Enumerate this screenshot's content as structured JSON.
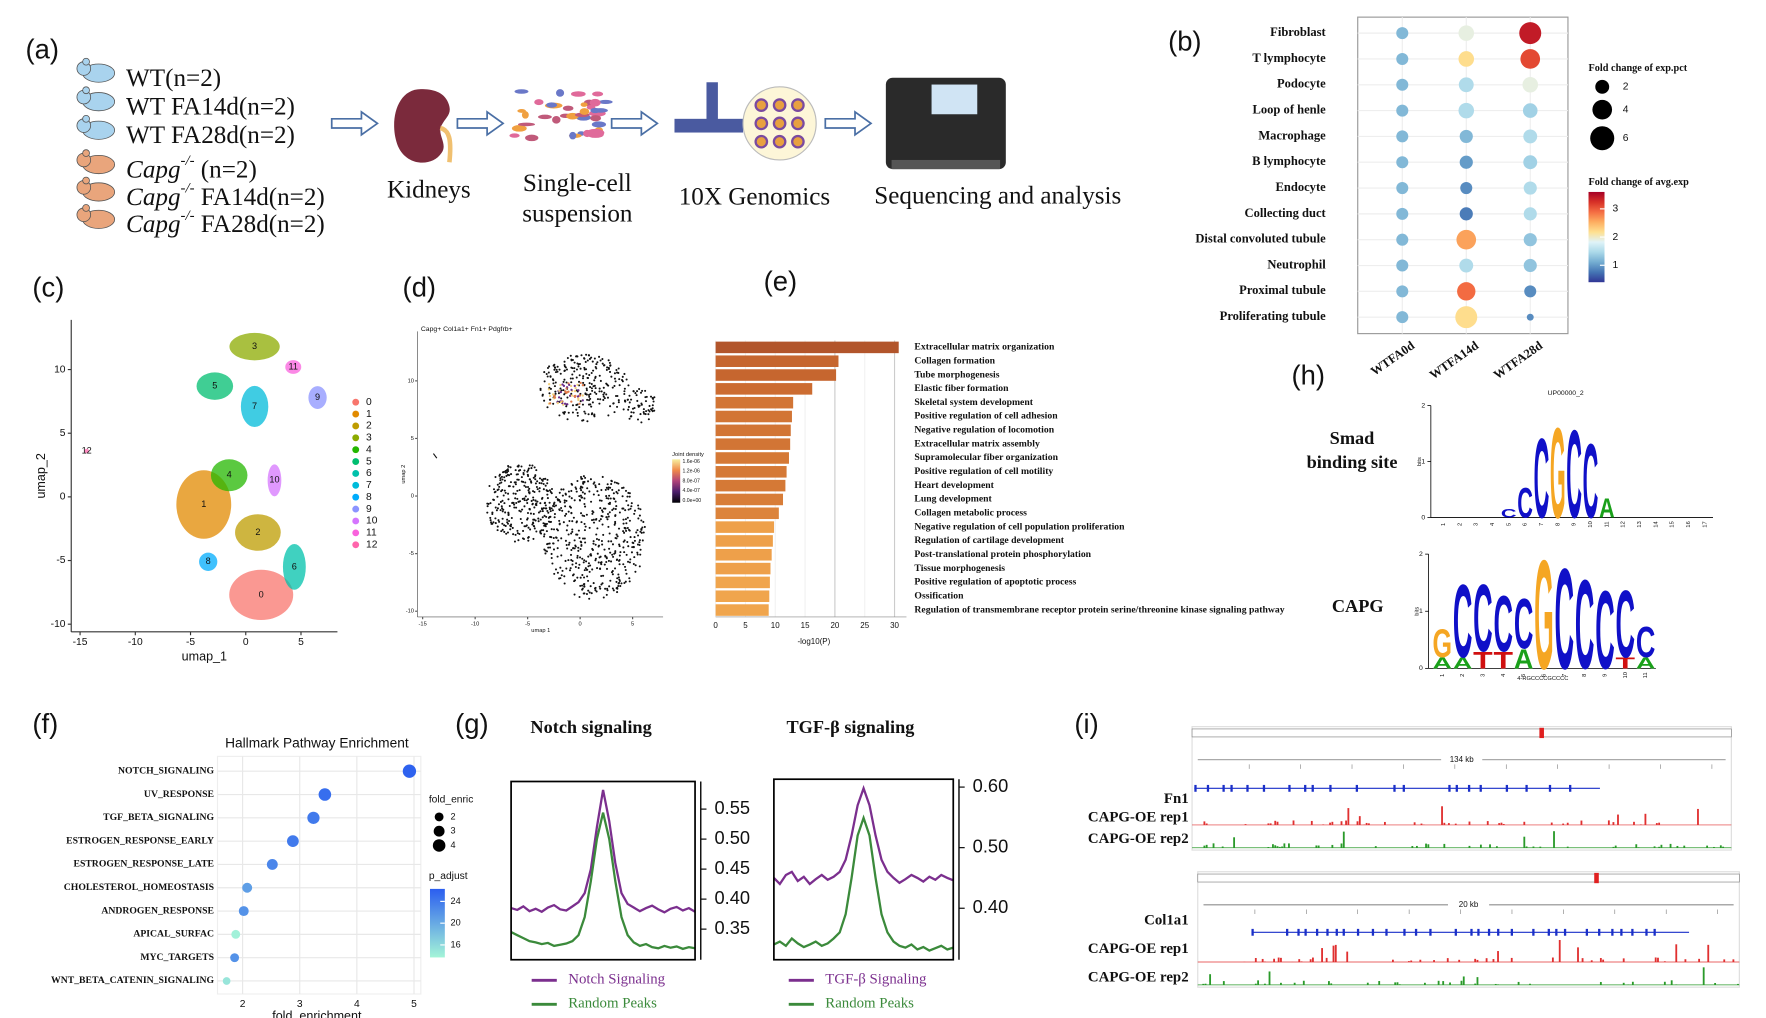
{
  "panel_labels": [
    "(a)",
    "(b)",
    "(c)",
    "(d)",
    "(e)",
    "(f)",
    "(g)",
    "(h)",
    "(i)"
  ],
  "workflow": {
    "groups": [
      {
        "rest": "WT(n=2)",
        "color": "#a9d3ee"
      },
      {
        "rest": "WT FA14d(n=2)",
        "color": "#a9d3ee"
      },
      {
        "rest": "WT FA28d(n=2)",
        "color": "#a9d3ee"
      },
      {
        "gene": "Capg",
        "sup": "-/-",
        "rest": " (n=2)",
        "color": "#e9a57c"
      },
      {
        "gene": "Capg",
        "sup": "-/-",
        "rest": " FA14d(n=2)",
        "color": "#e9a57c"
      },
      {
        "gene": "Capg",
        "sup": "-/-",
        "rest": " FA28d(n=2)",
        "color": "#e9a57c"
      }
    ],
    "steps": [
      {
        "lines": [
          "Kidneys"
        ]
      },
      {
        "lines": [
          "Single-cell",
          "suspension"
        ]
      },
      {
        "lines": [
          "10X Genomics"
        ]
      },
      {
        "lines": [
          "Sequencing and analysis"
        ]
      }
    ]
  },
  "chart_data": [
    {
      "type": "dotplot",
      "categories": [
        "Fibroblast",
        "T lymphocyte",
        "Podocyte",
        "Loop of henle",
        "Macrophage",
        "B lymphocyte",
        "Endocyte",
        "Collecting duct",
        "Distal convoluted tubule",
        "Neutrophil",
        "Proximal tubule",
        "Proliferating tubule"
      ],
      "series": [
        {
          "name": "WTFA0d",
          "values": [
            1.2,
            1.2,
            1.2,
            1.2,
            1.2,
            1.2,
            1.2,
            1.2,
            1.2,
            1.2,
            1.2,
            1.2
          ],
          "sizes": [
            1.5,
            1.5,
            1.5,
            1.5,
            1.5,
            1.5,
            1.5,
            1.5,
            1.5,
            1.5,
            1.5,
            1.5
          ]
        },
        {
          "name": "WTFA14d",
          "values": [
            1.9,
            2.2,
            1.5,
            1.5,
            1.2,
            1.0,
            0.9,
            0.8,
            2.6,
            1.5,
            2.9,
            2.2
          ],
          "sizes": [
            2.5,
            2.5,
            2.3,
            2.5,
            1.8,
            1.8,
            1.5,
            1.8,
            4,
            2,
            3.5,
            5
          ]
        },
        {
          "name": "WTFA28d",
          "values": [
            3.4,
            3.1,
            1.9,
            1.4,
            1.5,
            1.4,
            1.5,
            1.5,
            1.3,
            1.3,
            0.9,
            0.9
          ],
          "sizes": [
            5,
            4,
            2.5,
            2.2,
            2,
            2,
            1.8,
            1.8,
            1.8,
            1.8,
            1.5,
            0.5
          ]
        }
      ],
      "size_legend": {
        "title": "Fold change of exp.pct",
        "values": [
          2,
          4,
          6
        ]
      },
      "color_legend": {
        "title": "Fold change of avg.exp",
        "lim": [
          0.4,
          3.6
        ],
        "ticks": [
          1,
          2,
          3
        ],
        "colors": [
          "#313695",
          "#4575b4",
          "#74add1",
          "#abd9e9",
          "#e0f3f8",
          "#fee090",
          "#fdae61",
          "#f46d43",
          "#d73027",
          "#a50026"
        ]
      }
    },
    {
      "type": "scatter",
      "categories": [
        "0",
        "1",
        "2",
        "3",
        "4",
        "5",
        "6",
        "7",
        "8",
        "9",
        "10",
        "11",
        "12"
      ],
      "colors": [
        "#F8766D",
        "#E18A00",
        "#BE9C00",
        "#8CAB00",
        "#24B700",
        "#00BE70",
        "#00C1AB",
        "#00BBDA",
        "#00ACFC",
        "#8B93FF",
        "#D575FE",
        "#F962DD",
        "#FF65AC"
      ],
      "x": [
        1.4,
        -3.8,
        1.1,
        0.8,
        -1.5,
        -2.8,
        4.4,
        0.8,
        -3.4,
        6.5,
        2.6,
        4.3,
        -14.4
      ],
      "y": [
        -7.7,
        -0.6,
        -2.8,
        11.8,
        1.7,
        8.7,
        -5.5,
        7.1,
        -5.1,
        7.8,
        1.3,
        10.2,
        3.6
      ],
      "xlim": [
        -15.8,
        8.3
      ],
      "ylim": [
        -10.6,
        13.9
      ],
      "xticks": [
        -15,
        -10,
        -5,
        0,
        5
      ],
      "yticks": [
        -10,
        -5,
        0,
        5,
        10
      ],
      "xlabel": "umap_1",
      "ylabel": "umap_2"
    },
    {
      "type": "density",
      "title": "Capg+ Col1a1+ Fn1+ Pdgfrb+",
      "xlim": [
        -15.5,
        7.9
      ],
      "ylim": [
        -10.5,
        14.3
      ],
      "xticks": [
        -15,
        -10,
        -5,
        0,
        5
      ],
      "yticks": [
        -10,
        -5,
        0,
        5,
        10
      ],
      "xlabel": "umap 1",
      "ylabel": "umap 2",
      "legend_title": "Joint density",
      "legend_labels": [
        "1.6e-06",
        "1.2e-06",
        "8.0e-07",
        "4.0e-07",
        "0.0e+00"
      ],
      "colors": [
        "#f7f0a0",
        "#f08a4b",
        "#b0427a",
        "#4a1d6b",
        "#000004"
      ]
    },
    {
      "type": "bar",
      "orientation": "horizontal",
      "categories": [
        "Extracellular matrix organization",
        "Collagen formation",
        "Tube morphogenesis",
        "Elastic fiber formation",
        "Skeletal system development",
        "Positive regulation of cell adhesion",
        "Negative regulation of locomotion",
        "Extracellular matrix assembly",
        "Supramolecular fiber organization",
        "Positive regulation of cell motility",
        "Heart development",
        "Lung development",
        "Collagen metabolic process",
        "Negative regulation of cell population proliferation",
        "Regulation of cartilage development",
        "Post-translational protein phosphorylation",
        "Tissue morphogenesis",
        "Positive regulation of apoptotic process",
        "Ossification",
        "Regulation of transmembrane receptor protein serine/threonine kinase signaling pathway"
      ],
      "values": [
        30.7,
        20.6,
        20.2,
        16.2,
        13,
        12.8,
        12.6,
        12.5,
        12.3,
        11.9,
        11.7,
        11.3,
        10.6,
        9.8,
        9.6,
        9.4,
        9.2,
        9.1,
        9.0,
        8.9
      ],
      "colors": [
        "#b2552b",
        "#c6662f",
        "#c6662f",
        "#cc6c31",
        "#d27535",
        "#d27535",
        "#d27535",
        "#d27535",
        "#d57936",
        "#d57936",
        "#d57936",
        "#d87d38",
        "#dc833b",
        "#eea04a",
        "#eea04a",
        "#eea04a",
        "#eea04a",
        "#f0a54d",
        "#f0a54d",
        "#f0a54d"
      ],
      "xlim": [
        0,
        32
      ],
      "xticks": [
        0,
        5,
        10,
        15,
        20,
        25,
        30
      ],
      "xlabel": "-log10(P)"
    },
    {
      "type": "dotplot-h",
      "title": "Hallmark Pathway Enrichment",
      "categories": [
        "NOTCH_SIGNALING",
        "UV_RESPONSE",
        "TGF_BETA_SIGNALING",
        "ESTROGEN_RESPONSE_EARLY",
        "ESTROGEN_RESPONSE_LATE",
        "CHOLESTEROL_HOMEOSTASIS",
        "ANDROGEN_RESPONSE",
        "APICAL_SURFAC",
        "MYC_TARGETS",
        "WNT_BETA_CATENIN_SIGNALING"
      ],
      "values": [
        4.92,
        3.44,
        3.24,
        2.88,
        2.52,
        2.08,
        2.02,
        1.88,
        1.86,
        1.72
      ],
      "sizes": [
        4.5,
        4,
        3.8,
        3.5,
        3,
        2.5,
        2.5,
        2,
        2,
        1.5
      ],
      "p_adjust": [
        26,
        25,
        24,
        24,
        23,
        21,
        22,
        14,
        22,
        15
      ],
      "xlim": [
        1.56,
        5.12
      ],
      "xticks": [
        2,
        3,
        4,
        5
      ],
      "xlabel": "fold_enrichment",
      "size_legend": {
        "title": "fold_enric",
        "values": [
          2,
          3,
          4
        ]
      },
      "color_legend": {
        "title": "p_adjust",
        "lim": [
          13.7,
          26.3
        ],
        "ticks": [
          16,
          20,
          24
        ],
        "colors": [
          "#a4f5d8",
          "#2b5ef0"
        ]
      }
    },
    {
      "type": "line",
      "title": "Notch signaling",
      "ylim": [
        0.299,
        0.596
      ],
      "yticks": [
        {
          "value": 0.35,
          "label": "0.35"
        },
        {
          "value": 0.4,
          "label": "0.40"
        },
        0.45,
        {
          "value": 0.5,
          "label": "0.50"
        },
        0.55
      ],
      "series": [
        {
          "name": "Notch Signaling",
          "color": "#7b2f8e",
          "values": [
            0.385,
            0.382,
            0.388,
            0.38,
            0.384,
            0.379,
            0.386,
            0.39,
            0.383,
            0.381,
            0.388,
            0.395,
            0.41,
            0.45,
            0.52,
            0.582,
            0.53,
            0.46,
            0.41,
            0.392,
            0.386,
            0.38,
            0.385,
            0.389,
            0.383,
            0.378,
            0.384,
            0.387,
            0.381,
            0.385,
            0.379
          ]
        },
        {
          "name": "Random Peaks",
          "color": "#3b8a3b",
          "values": [
            0.345,
            0.34,
            0.335,
            0.33,
            0.328,
            0.325,
            0.327,
            0.322,
            0.324,
            0.326,
            0.33,
            0.34,
            0.37,
            0.43,
            0.5,
            0.544,
            0.5,
            0.43,
            0.37,
            0.34,
            0.328,
            0.322,
            0.325,
            0.32,
            0.318,
            0.322,
            0.319,
            0.321,
            0.317,
            0.32,
            0.318
          ]
        }
      ]
    },
    {
      "type": "line",
      "title": "TGF-β signaling",
      "ylim": [
        0.315,
        0.613
      ],
      "yticks": [
        {
          "value": 0.4,
          "label": "0.40"
        },
        {
          "value": 0.5,
          "label": "0.50"
        },
        {
          "value": 0.6,
          "label": "0.60"
        }
      ],
      "series": [
        {
          "name": "TGF-β Signaling",
          "color": "#7b2f8e",
          "values": [
            0.45,
            0.44,
            0.455,
            0.46,
            0.445,
            0.452,
            0.44,
            0.448,
            0.455,
            0.447,
            0.452,
            0.46,
            0.48,
            0.52,
            0.57,
            0.598,
            0.57,
            0.52,
            0.48,
            0.46,
            0.45,
            0.442,
            0.448,
            0.455,
            0.45,
            0.444,
            0.452,
            0.447,
            0.455,
            0.45,
            0.446
          ]
        },
        {
          "name": "Random Peaks",
          "color": "#3b8a3b",
          "values": [
            0.34,
            0.345,
            0.338,
            0.35,
            0.342,
            0.336,
            0.34,
            0.345,
            0.338,
            0.342,
            0.35,
            0.36,
            0.39,
            0.45,
            0.52,
            0.549,
            0.52,
            0.45,
            0.39,
            0.36,
            0.345,
            0.338,
            0.335,
            0.34,
            0.332,
            0.336,
            0.33,
            0.334,
            0.338,
            0.332,
            0.335
          ]
        }
      ]
    }
  ],
  "motifs": [
    {
      "label_lines": [
        "Smad",
        "binding site"
      ],
      "title": "UP00000_2",
      "ylabel": "bits",
      "yticks": [
        0,
        1,
        2
      ],
      "positions": [
        1,
        2,
        3,
        4,
        5,
        6,
        7,
        8,
        9,
        10,
        11,
        12,
        13,
        14,
        15,
        16,
        17
      ],
      "columns": [
        {
          "pos": 5,
          "stack": [
            {
              "letter": "C",
              "bits": 0.15
            }
          ]
        },
        {
          "pos": 6,
          "stack": [
            {
              "letter": "C",
              "bits": 0.55
            }
          ]
        },
        {
          "pos": 7,
          "stack": [
            {
              "letter": "C",
              "bits": 1.45
            }
          ]
        },
        {
          "pos": 8,
          "stack": [
            {
              "letter": "G",
              "bits": 1.65
            }
          ]
        },
        {
          "pos": 9,
          "stack": [
            {
              "letter": "C",
              "bits": 1.6
            }
          ]
        },
        {
          "pos": 10,
          "stack": [
            {
              "letter": "C",
              "bits": 1.35
            }
          ]
        },
        {
          "pos": 11,
          "stack": [
            {
              "letter": "A",
              "bits": 0.35
            }
          ]
        }
      ]
    },
    {
      "label_lines": [
        "CAPG"
      ],
      "ylabel": "bits",
      "yticks": [
        0,
        1,
        2
      ],
      "consensus": "4-RGCCCCGCCCC",
      "positions": [
        1,
        2,
        3,
        4,
        5,
        6,
        7,
        8,
        9,
        10,
        11
      ],
      "columns": [
        {
          "pos": 1,
          "stack": [
            {
              "letter": "A",
              "bits": 0.2
            },
            {
              "letter": "G",
              "bits": 0.5
            }
          ]
        },
        {
          "pos": 2,
          "stack": [
            {
              "letter": "A",
              "bits": 0.2
            },
            {
              "letter": "C",
              "bits": 1.3
            }
          ]
        },
        {
          "pos": 3,
          "stack": [
            {
              "letter": "T",
              "bits": 0.3
            },
            {
              "letter": "C",
              "bits": 1.2
            }
          ]
        },
        {
          "pos": 4,
          "stack": [
            {
              "letter": "T",
              "bits": 0.3
            },
            {
              "letter": "C",
              "bits": 1.0
            }
          ]
        },
        {
          "pos": 5,
          "stack": [
            {
              "letter": "A",
              "bits": 0.35
            },
            {
              "letter": "C",
              "bits": 0.9
            }
          ]
        },
        {
          "pos": 6,
          "stack": [
            {
              "letter": "G",
              "bits": 1.95
            }
          ]
        },
        {
          "pos": 7,
          "stack": [
            {
              "letter": "C",
              "bits": 1.8
            }
          ]
        },
        {
          "pos": 8,
          "stack": [
            {
              "letter": "C",
              "bits": 1.6
            }
          ]
        },
        {
          "pos": 9,
          "stack": [
            {
              "letter": "C",
              "bits": 1.4
            }
          ]
        },
        {
          "pos": 10,
          "stack": [
            {
              "letter": "T",
              "bits": 0.2
            },
            {
              "letter": "C",
              "bits": 1.2
            }
          ]
        },
        {
          "pos": 11,
          "stack": [
            {
              "letter": "A",
              "bits": 0.2
            },
            {
              "letter": "C",
              "bits": 0.55
            }
          ]
        }
      ]
    }
  ],
  "tracks": [
    {
      "gene": "Fn1",
      "span": "134 kb",
      "tracks": [
        "CAPG-OE rep1",
        "CAPG-OE rep2"
      ]
    },
    {
      "gene": "Col1a1",
      "span": "20 kb",
      "tracks": [
        "CAPG-OE rep1",
        "CAPG-OE rep2"
      ]
    }
  ]
}
